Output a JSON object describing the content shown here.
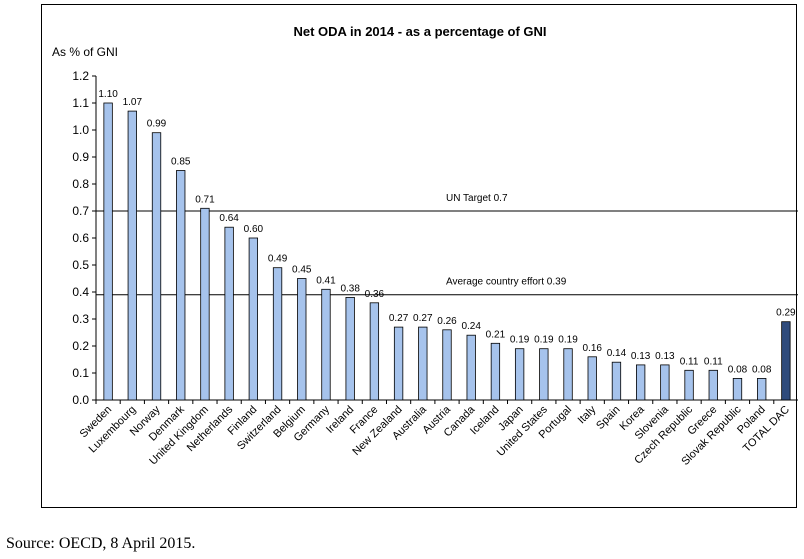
{
  "chart_data": {
    "type": "bar",
    "title": "Net ODA in 2014 - as a percentage of GNI",
    "ylabel": "As % of GNI",
    "xlabel": "",
    "ylim": [
      0,
      1.2
    ],
    "yticks": [
      "0.0",
      "0.1",
      "0.2",
      "0.3",
      "0.4",
      "0.5",
      "0.6",
      "0.7",
      "0.8",
      "0.9",
      "1.0",
      "1.1",
      "1.2"
    ],
    "categories": [
      "Sweden",
      "Luxembourg",
      "Norway",
      "Denmark",
      "United Kingdom",
      "Netherlands",
      "Finland",
      "Switzerland",
      "Belgium",
      "Germany",
      "Ireland",
      "France",
      "New Zealand",
      "Australia",
      "Austria",
      "Canada",
      "Iceland",
      "Japan",
      "United States",
      "Portugal",
      "Italy",
      "Spain",
      "Korea",
      "Slovenia",
      "Czech Republic",
      "Greece",
      "Slovak Republic",
      "Poland",
      "TOTAL DAC"
    ],
    "values": [
      1.1,
      1.07,
      0.99,
      0.85,
      0.71,
      0.64,
      0.6,
      0.49,
      0.45,
      0.41,
      0.38,
      0.36,
      0.27,
      0.27,
      0.26,
      0.24,
      0.21,
      0.19,
      0.19,
      0.19,
      0.16,
      0.14,
      0.13,
      0.13,
      0.11,
      0.11,
      0.08,
      0.08,
      0.29
    ],
    "value_labels": [
      "1.10",
      "1.07",
      "0.99",
      "0.85",
      "0.71",
      "0.64",
      "0.60",
      "0.49",
      "0.45",
      "0.41",
      "0.38",
      "0.36",
      "0.27",
      "0.27",
      "0.26",
      "0.24",
      "0.21",
      "0.19",
      "0.19",
      "0.19",
      "0.16",
      "0.14",
      "0.13",
      "0.13",
      "0.11",
      "0.11",
      "0.08",
      "0.08",
      "0.29"
    ],
    "highlight_category": "TOTAL DAC",
    "reference_lines": [
      {
        "label": "UN Target 0.7",
        "value": 0.7
      },
      {
        "label": "Average country effort 0.39",
        "value": 0.39
      }
    ],
    "grid": false,
    "legend": "none"
  },
  "colors": {
    "bar": "#a6c3ec",
    "bar_highlight": "#2f4b7c",
    "bar_outline": "#000000",
    "reference_line": "#000000"
  },
  "source": "Source: OECD, 8 April 2015."
}
